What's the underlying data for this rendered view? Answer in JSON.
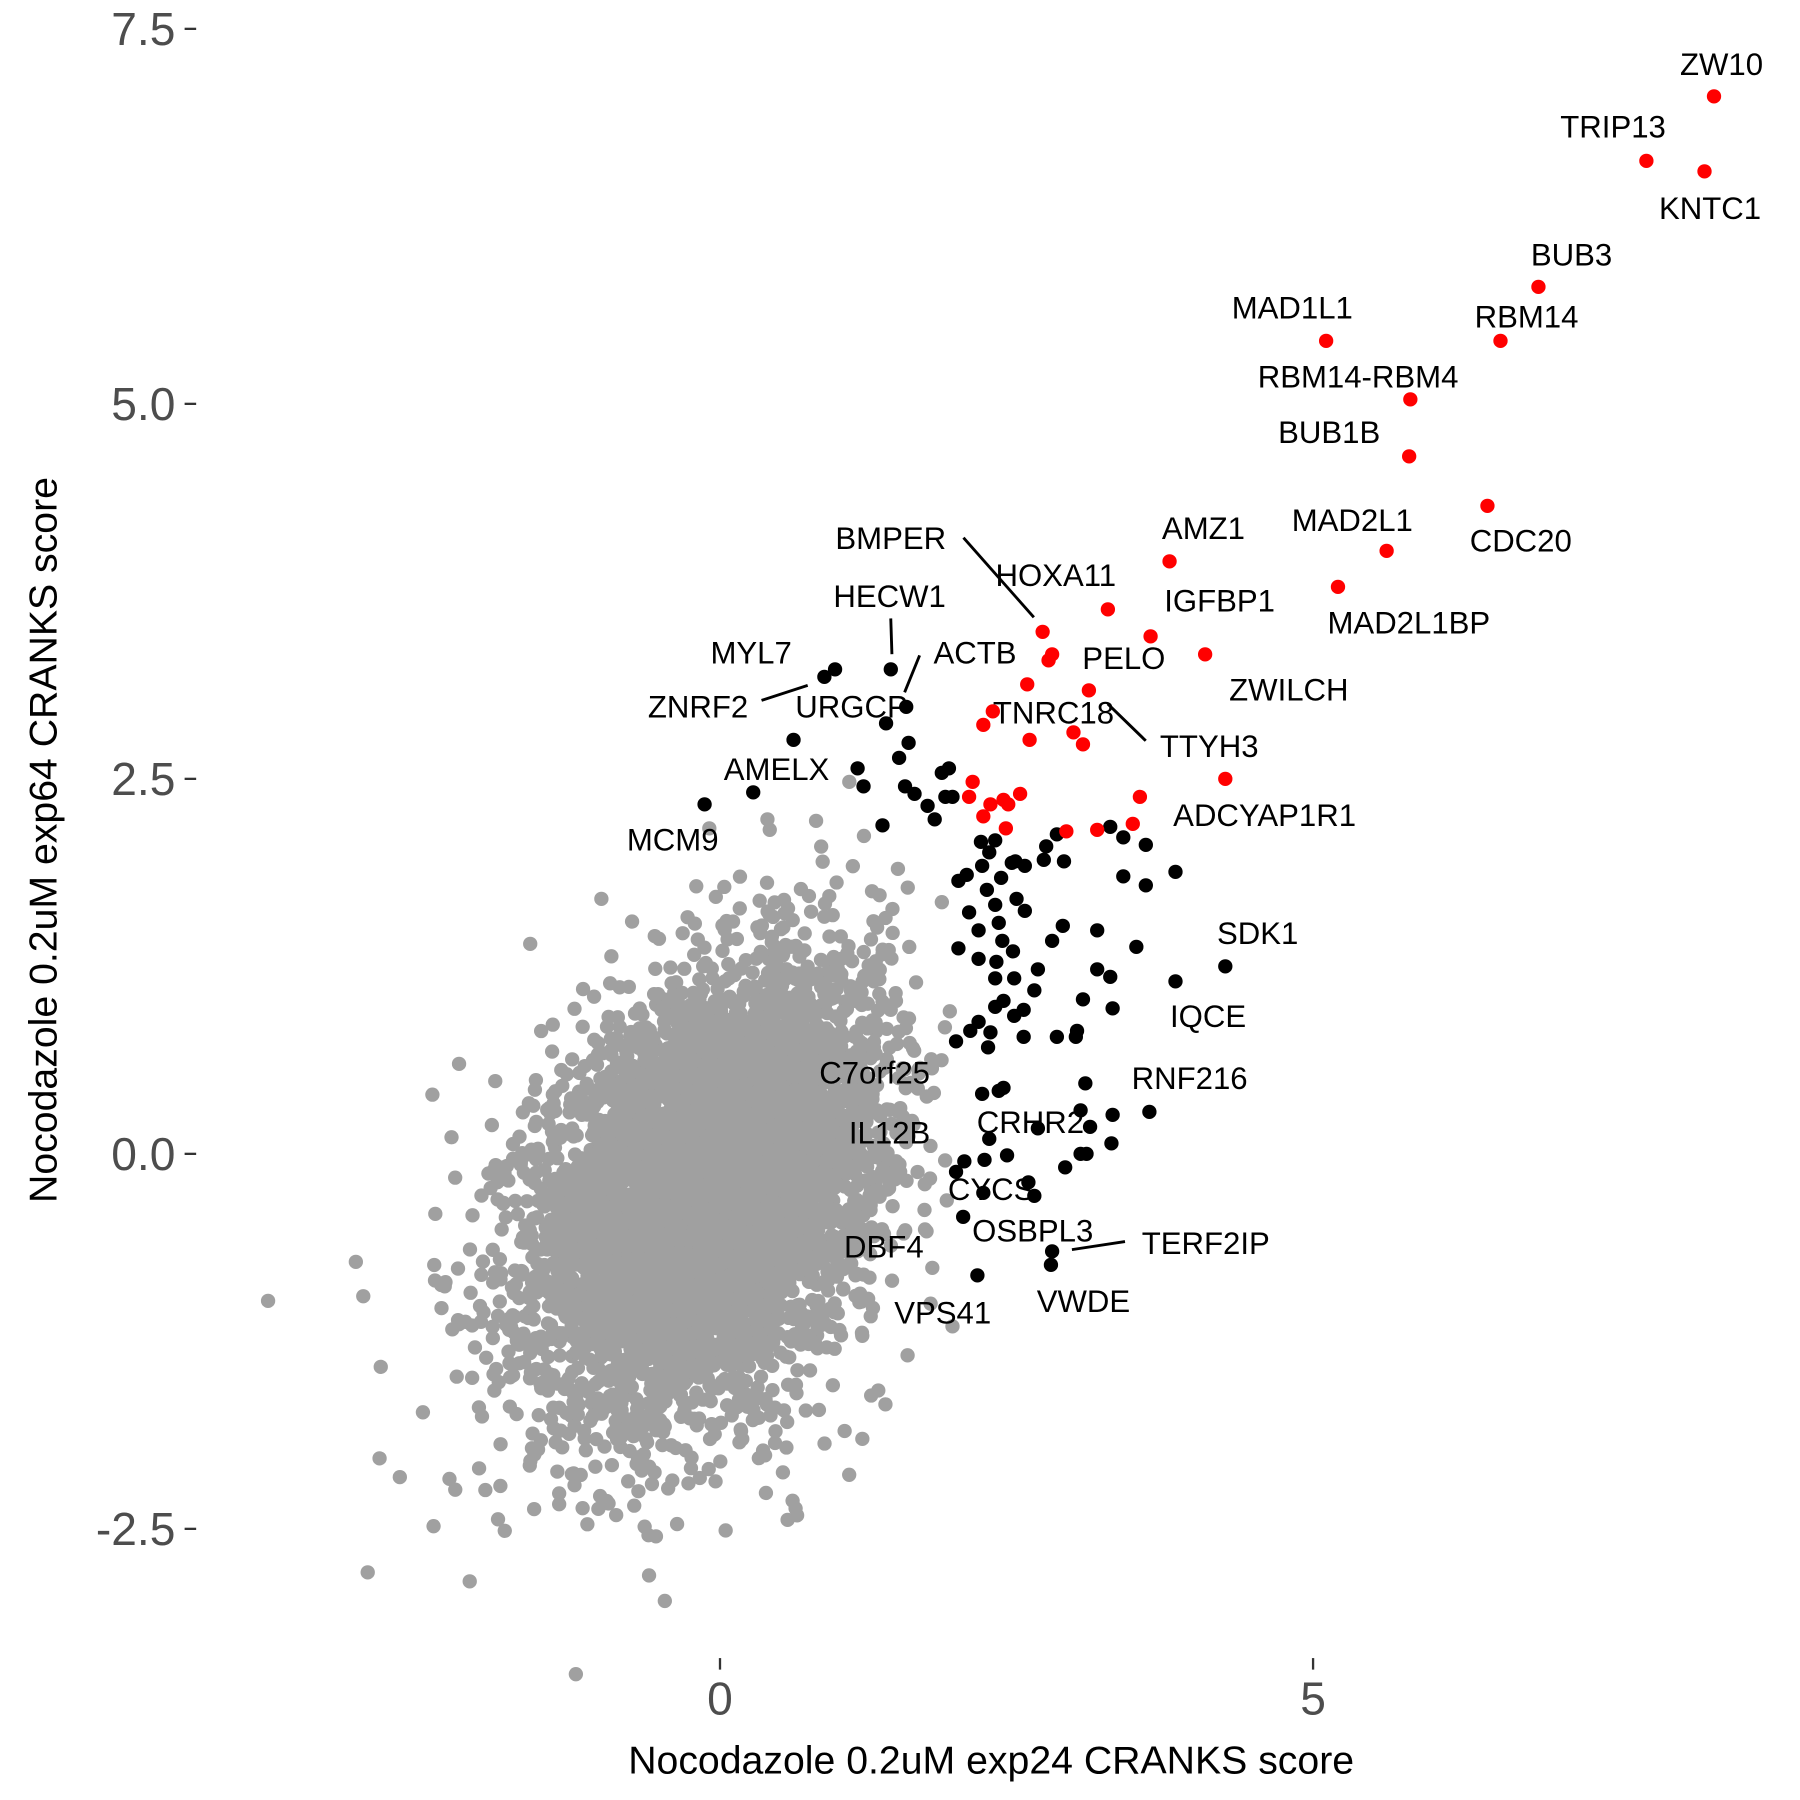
{
  "chart_data": {
    "type": "scatter",
    "title": "",
    "xlabel": "Nocodazole 0.2uM exp24 CRANKS score",
    "ylabel": "Nocodazole 0.2uM exp64 CRANKS score",
    "xlim": [
      -3.9,
      8.9
    ],
    "ylim": [
      -3.3,
      7.7
    ],
    "x_ticks": [
      {
        "value": 0,
        "label": "0"
      },
      {
        "value": 5,
        "label": "5"
      }
    ],
    "y_ticks": [
      {
        "value": -2.5,
        "label": "-2.5"
      },
      {
        "value": 0,
        "label": "0.0"
      },
      {
        "value": 2.5,
        "label": "2.5"
      },
      {
        "value": 5,
        "label": "5.0"
      },
      {
        "value": 7.5,
        "label": "7.5"
      }
    ],
    "grid": false,
    "colors": {
      "background": "#a0a0a0",
      "significant": "#000000",
      "highlighted": "#ff0000",
      "tick_text": "#4d4d4d"
    },
    "red_points": [
      {
        "x": 8.38,
        "y": 7.05,
        "label": "ZW10"
      },
      {
        "x": 7.81,
        "y": 6.62,
        "label": "TRIP13"
      },
      {
        "x": 8.3,
        "y": 6.55,
        "label": "KNTC1"
      },
      {
        "x": 6.9,
        "y": 5.78,
        "label": "BUB3"
      },
      {
        "x": 6.58,
        "y": 5.42,
        "label": "RBM14"
      },
      {
        "x": 5.11,
        "y": 5.42,
        "label": "MAD1L1"
      },
      {
        "x": 5.82,
        "y": 5.03,
        "label": "RBM14-RBM4"
      },
      {
        "x": 5.81,
        "y": 4.65,
        "label": "BUB1B"
      },
      {
        "x": 6.47,
        "y": 4.32,
        "label": "CDC20"
      },
      {
        "x": 5.62,
        "y": 4.02,
        "label": "MAD2L1"
      },
      {
        "x": 5.21,
        "y": 3.78,
        "label": "MAD2L1BP"
      },
      {
        "x": 3.79,
        "y": 3.95,
        "label": "AMZ1"
      },
      {
        "x": 3.27,
        "y": 3.63,
        "label": "HOXA11"
      },
      {
        "x": 3.63,
        "y": 3.45,
        "label": "IGFBP1"
      },
      {
        "x": 4.09,
        "y": 3.33,
        "label": "ZWILCH"
      },
      {
        "x": 2.72,
        "y": 3.48,
        "label": "BMPER"
      },
      {
        "x": 2.8,
        "y": 3.33,
        "label": "PELO"
      },
      {
        "x": 2.77,
        "y": 3.29,
        "label": ""
      },
      {
        "x": 2.59,
        "y": 3.13,
        "label": ""
      },
      {
        "x": 3.11,
        "y": 3.09,
        "label": "TTYH3"
      },
      {
        "x": 2.3,
        "y": 2.95,
        "label": ""
      },
      {
        "x": 2.22,
        "y": 2.86,
        "label": ""
      },
      {
        "x": 2.61,
        "y": 2.76,
        "label": ""
      },
      {
        "x": 2.98,
        "y": 2.81,
        "label": "TNRC18"
      },
      {
        "x": 3.06,
        "y": 2.73,
        "label": ""
      },
      {
        "x": 4.26,
        "y": 2.5,
        "label": "ADCYAP1R1"
      },
      {
        "x": 2.13,
        "y": 2.48,
        "label": ""
      },
      {
        "x": 2.1,
        "y": 2.38,
        "label": ""
      },
      {
        "x": 2.53,
        "y": 2.4,
        "label": ""
      },
      {
        "x": 2.39,
        "y": 2.36,
        "label": ""
      },
      {
        "x": 2.43,
        "y": 2.33,
        "label": ""
      },
      {
        "x": 2.28,
        "y": 2.33,
        "label": ""
      },
      {
        "x": 2.22,
        "y": 2.25,
        "label": ""
      },
      {
        "x": 3.54,
        "y": 2.38,
        "label": ""
      },
      {
        "x": 3.48,
        "y": 2.2,
        "label": ""
      },
      {
        "x": 2.92,
        "y": 2.15,
        "label": ""
      },
      {
        "x": 3.18,
        "y": 2.16,
        "label": ""
      },
      {
        "x": 2.41,
        "y": 2.17,
        "label": ""
      }
    ],
    "black_points": [
      {
        "x": -0.13,
        "y": 2.33,
        "label": "MCM9"
      },
      {
        "x": 0.28,
        "y": 2.41,
        "label": "AMELX"
      },
      {
        "x": 0.97,
        "y": 3.23,
        "label": "MYL7"
      },
      {
        "x": 0.88,
        "y": 3.18,
        "label": "ZNRF2"
      },
      {
        "x": 1.44,
        "y": 3.23,
        "label": "HECW1"
      },
      {
        "x": 1.57,
        "y": 2.98,
        "label": "ACTB"
      },
      {
        "x": 1.4,
        "y": 2.87,
        "label": "URGCP"
      },
      {
        "x": 4.26,
        "y": 1.25,
        "label": "SDK1"
      },
      {
        "x": 3.84,
        "y": 1.15,
        "label": "IQCE"
      },
      {
        "x": 3.62,
        "y": 0.28,
        "label": "RNF216"
      },
      {
        "x": 2.21,
        "y": 0.4,
        "label": "C7orf25"
      },
      {
        "x": 2.06,
        "y": -0.05,
        "label": "IL12B"
      },
      {
        "x": 2.68,
        "y": 0.17,
        "label": "CRHR2"
      },
      {
        "x": 2.22,
        "y": -0.26,
        "label": "CYCS"
      },
      {
        "x": 2.05,
        "y": -0.42,
        "label": "OSBPL3"
      },
      {
        "x": 2.17,
        "y": -0.81,
        "label": "DBF4"
      },
      {
        "x": 2.8,
        "y": -0.65,
        "label": "TERF2IP"
      },
      {
        "x": 2.79,
        "y": -0.74,
        "label": "VWDE"
      },
      {
        "x": 1.99,
        "y": -0.12,
        "label": "VPS41"
      },
      {
        "x": 1.16,
        "y": 2.57
      },
      {
        "x": 1.21,
        "y": 2.45
      },
      {
        "x": 0.62,
        "y": 2.76
      },
      {
        "x": 1.37,
        "y": 2.19
      },
      {
        "x": 1.51,
        "y": 2.64
      },
      {
        "x": 1.56,
        "y": 2.45
      },
      {
        "x": 1.59,
        "y": 2.74
      },
      {
        "x": 1.64,
        "y": 2.4
      },
      {
        "x": 1.75,
        "y": 2.32
      },
      {
        "x": 1.81,
        "y": 2.23
      },
      {
        "x": 1.87,
        "y": 2.54
      },
      {
        "x": 1.93,
        "y": 2.57
      },
      {
        "x": 1.9,
        "y": 2.38
      },
      {
        "x": 1.96,
        "y": 2.38
      },
      {
        "x": 2.2,
        "y": 2.08
      },
      {
        "x": 2.21,
        "y": 1.92
      },
      {
        "x": 2.27,
        "y": 2.01
      },
      {
        "x": 2.32,
        "y": 2.09
      },
      {
        "x": 2.49,
        "y": 1.95
      },
      {
        "x": 2.46,
        "y": 1.94
      },
      {
        "x": 2.75,
        "y": 2.05
      },
      {
        "x": 2.73,
        "y": 1.96
      },
      {
        "x": 2.84,
        "y": 2.13
      },
      {
        "x": 2.9,
        "y": 1.95
      },
      {
        "x": 3.29,
        "y": 2.18
      },
      {
        "x": 3.4,
        "y": 2.11
      },
      {
        "x": 3.59,
        "y": 2.06
      },
      {
        "x": 3.4,
        "y": 1.85
      },
      {
        "x": 3.59,
        "y": 1.79
      },
      {
        "x": 3.84,
        "y": 1.88
      },
      {
        "x": 2.01,
        "y": 1.82
      },
      {
        "x": 2.08,
        "y": 1.86
      },
      {
        "x": 2.25,
        "y": 1.76
      },
      {
        "x": 2.37,
        "y": 1.84
      },
      {
        "x": 2.5,
        "y": 1.7
      },
      {
        "x": 2.57,
        "y": 1.92
      },
      {
        "x": 2.1,
        "y": 1.61
      },
      {
        "x": 2.18,
        "y": 1.49
      },
      {
        "x": 2.32,
        "y": 1.66
      },
      {
        "x": 2.35,
        "y": 1.54
      },
      {
        "x": 2.38,
        "y": 1.42
      },
      {
        "x": 2.47,
        "y": 1.35
      },
      {
        "x": 2.57,
        "y": 1.62
      },
      {
        "x": 2.89,
        "y": 1.52
      },
      {
        "x": 3.18,
        "y": 1.49
      },
      {
        "x": 3.51,
        "y": 1.38
      },
      {
        "x": 2.01,
        "y": 1.37
      },
      {
        "x": 2.18,
        "y": 1.3
      },
      {
        "x": 2.33,
        "y": 1.28
      },
      {
        "x": 2.48,
        "y": 1.17
      },
      {
        "x": 2.68,
        "y": 1.23
      },
      {
        "x": 2.8,
        "y": 1.42
      },
      {
        "x": 3.18,
        "y": 1.23
      },
      {
        "x": 3.29,
        "y": 1.18
      },
      {
        "x": 3.06,
        "y": 1.03
      },
      {
        "x": 2.65,
        "y": 1.09
      },
      {
        "x": 2.32,
        "y": 1.17
      },
      {
        "x": 2.32,
        "y": 0.98
      },
      {
        "x": 2.39,
        "y": 1.02
      },
      {
        "x": 2.48,
        "y": 0.92
      },
      {
        "x": 2.56,
        "y": 0.96
      },
      {
        "x": 3.01,
        "y": 0.82
      },
      {
        "x": 3.0,
        "y": 0.78
      },
      {
        "x": 2.84,
        "y": 0.78
      },
      {
        "x": 3.31,
        "y": 0.97
      },
      {
        "x": 2.11,
        "y": 0.82
      },
      {
        "x": 2.18,
        "y": 0.88
      },
      {
        "x": 2.28,
        "y": 0.81
      },
      {
        "x": 2.26,
        "y": 0.71
      },
      {
        "x": 2.56,
        "y": 0.78
      },
      {
        "x": 1.99,
        "y": 0.75
      },
      {
        "x": 3.08,
        "y": 0.47
      },
      {
        "x": 2.35,
        "y": 0.42
      },
      {
        "x": 2.39,
        "y": 0.44
      },
      {
        "x": 3.04,
        "y": 0.29
      },
      {
        "x": 3.31,
        "y": 0.26
      },
      {
        "x": 3.12,
        "y": 0.18
      },
      {
        "x": 3.04,
        "y": 0.0
      },
      {
        "x": 3.09,
        "y": 0.0
      },
      {
        "x": 3.3,
        "y": 0.07
      },
      {
        "x": 2.91,
        "y": -0.09
      },
      {
        "x": 2.27,
        "y": 0.1
      },
      {
        "x": 2.42,
        "y": -0.01
      },
      {
        "x": 2.23,
        "y": -0.04
      },
      {
        "x": 2.6,
        "y": -0.19
      },
      {
        "x": 2.65,
        "y": -0.28
      }
    ],
    "gray_outliers": [
      {
        "x": -3.81,
        "y": -0.98
      },
      {
        "x": -2.97,
        "y": -2.79
      },
      {
        "x": -2.11,
        "y": -2.85
      },
      {
        "x": -0.54,
        "y": -2.55
      },
      {
        "x": -3.07,
        "y": -0.72
      },
      {
        "x": -2.86,
        "y": -1.42
      },
      {
        "x": -2.87,
        "y": -2.03
      },
      {
        "x": 0.57,
        "y": -2.44
      },
      {
        "x": 0.65,
        "y": -2.41
      },
      {
        "x": 1.96,
        "y": -1.15
      },
      {
        "x": 1.79,
        "y": -0.76
      },
      {
        "x": -0.09,
        "y": 2.17
      },
      {
        "x": 0.4,
        "y": 2.23
      },
      {
        "x": 0.81,
        "y": 2.22
      },
      {
        "x": -2.4,
        "y": -0.4
      },
      {
        "x": -2.2,
        "y": 0.6
      },
      {
        "x": -1.6,
        "y": 1.4
      },
      {
        "x": -1.0,
        "y": 1.7
      },
      {
        "x": 1.5,
        "y": 1.9
      },
      {
        "x": 1.2,
        "y": -1.9
      }
    ],
    "gray_cloud": {
      "n": 6000,
      "mean": [
        -0.1,
        -0.25
      ],
      "sd": [
        0.72,
        0.72
      ],
      "correlation": 0.35,
      "x_max": 1.95
    }
  }
}
